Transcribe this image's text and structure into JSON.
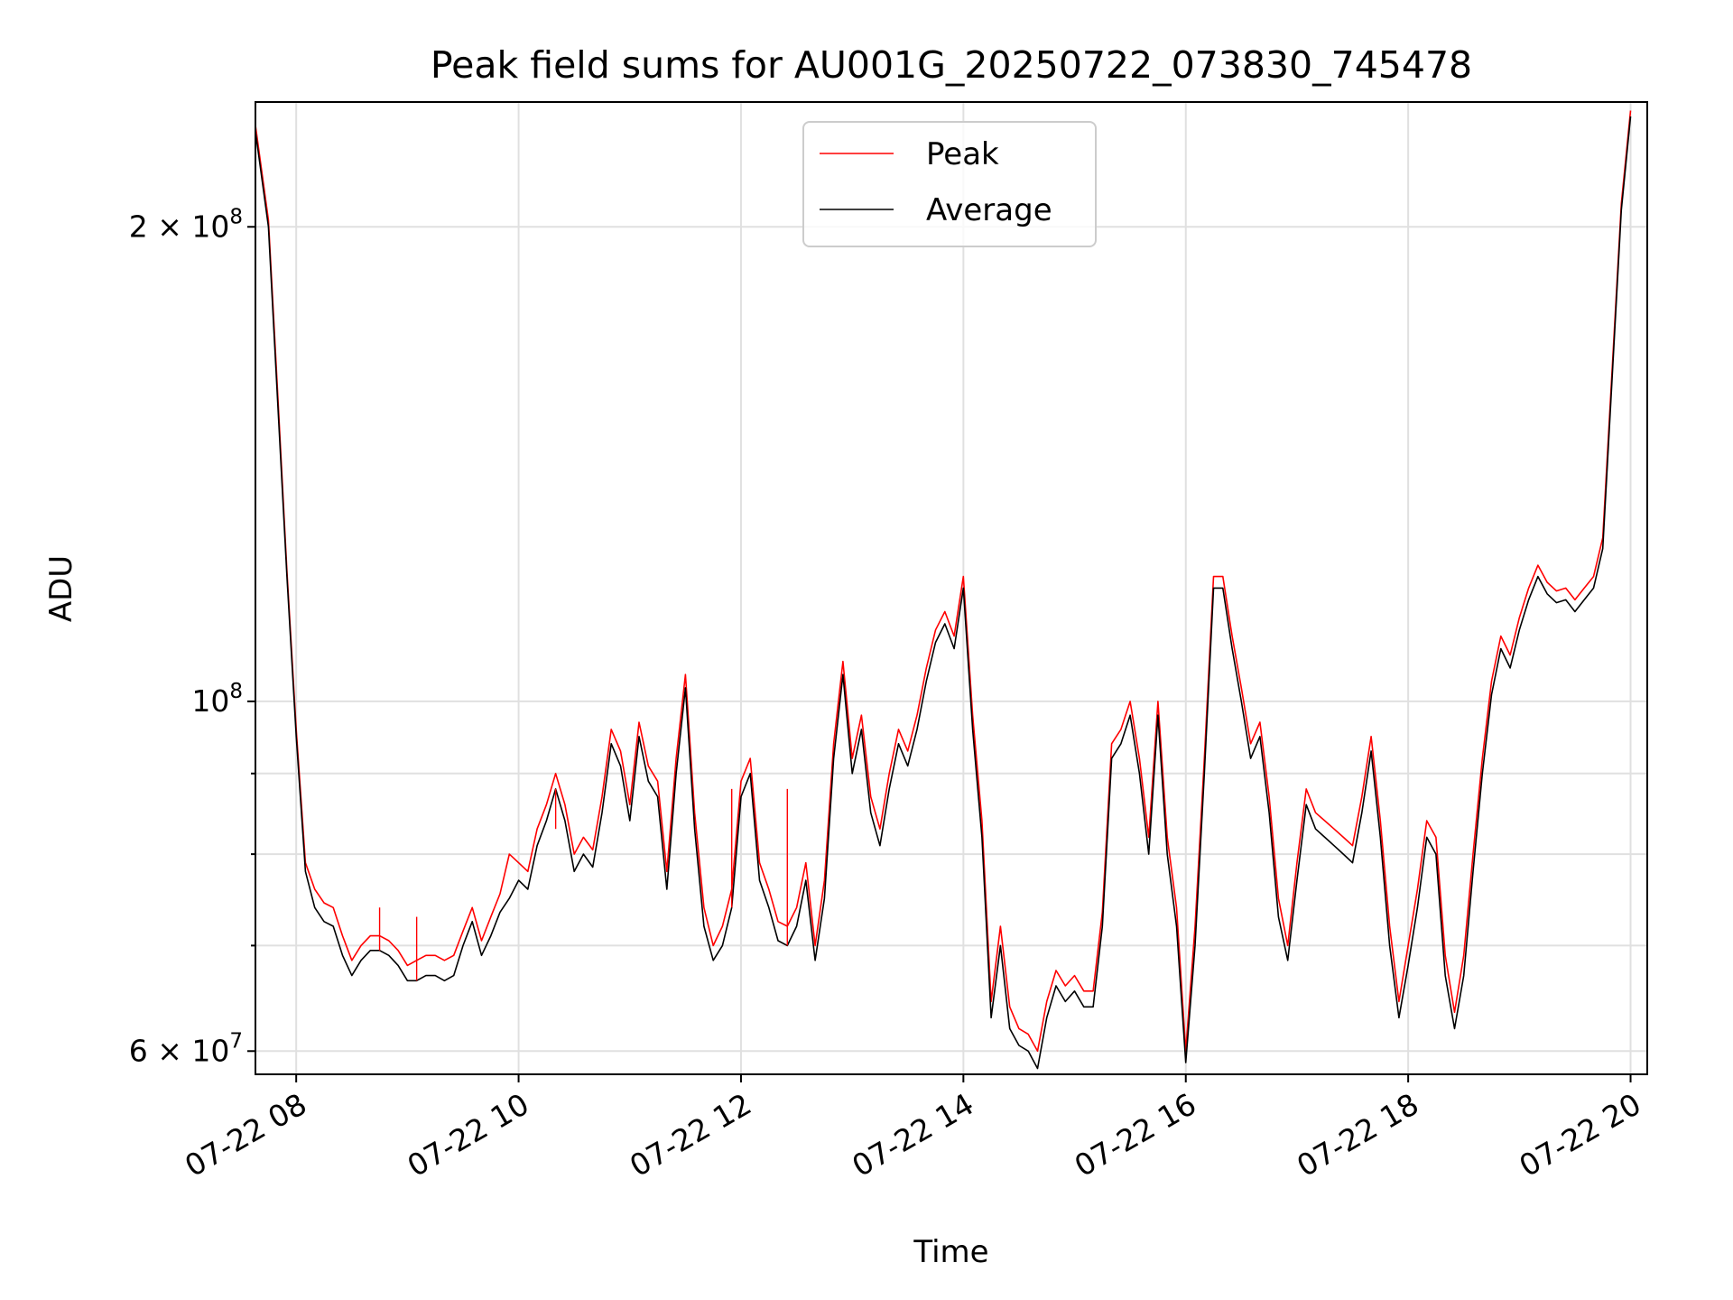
{
  "chart_data": {
    "type": "line",
    "title": "Peak field sums for AU001G_20250722_073830_745478",
    "xlabel": "Time",
    "ylabel": "ADU",
    "yscale": "log",
    "grid": true,
    "legend_position": "upper center",
    "x_range": [
      "2025-07-22 07:38",
      "2025-07-22 20:09"
    ],
    "ylim": [
      58000000,
      240000000
    ],
    "x_ticks": [
      "07-22 08",
      "07-22 10",
      "07-22 12",
      "07-22 14",
      "07-22 16",
      "07-22 18",
      "07-22 20"
    ],
    "y_ticks": [
      {
        "value": 60000000,
        "label": "6 × 10",
        "exp": "7"
      },
      {
        "value": 100000000,
        "label": "10",
        "exp": "8"
      },
      {
        "value": 200000000,
        "label": "2 × 10",
        "exp": "8"
      }
    ],
    "y_minor_ticks": [
      70000000,
      80000000,
      90000000
    ],
    "series": [
      {
        "name": "Peak",
        "color": "#ff0000"
      },
      {
        "name": "Average",
        "color": "#000000"
      }
    ],
    "x": [
      "07:38",
      "07:45",
      "07:50",
      "07:55",
      "08:00",
      "08:05",
      "08:10",
      "08:15",
      "08:20",
      "08:25",
      "08:30",
      "08:35",
      "08:40",
      "08:45",
      "08:50",
      "08:55",
      "09:00",
      "09:05",
      "09:10",
      "09:15",
      "09:20",
      "09:25",
      "09:30",
      "09:35",
      "09:40",
      "09:45",
      "09:50",
      "09:55",
      "10:00",
      "10:05",
      "10:10",
      "10:15",
      "10:20",
      "10:25",
      "10:30",
      "10:35",
      "10:40",
      "10:45",
      "10:50",
      "10:55",
      "11:00",
      "11:05",
      "11:10",
      "11:15",
      "11:20",
      "11:25",
      "11:30",
      "11:35",
      "11:40",
      "11:45",
      "11:50",
      "11:55",
      "12:00",
      "12:05",
      "12:10",
      "12:15",
      "12:20",
      "12:25",
      "12:30",
      "12:35",
      "12:40",
      "12:45",
      "12:50",
      "12:55",
      "13:00",
      "13:05",
      "13:10",
      "13:15",
      "13:20",
      "13:25",
      "13:30",
      "13:35",
      "13:40",
      "13:45",
      "13:50",
      "13:55",
      "14:00",
      "14:05",
      "14:10",
      "14:15",
      "14:20",
      "14:25",
      "14:30",
      "14:35",
      "14:40",
      "14:45",
      "14:50",
      "14:55",
      "15:00",
      "15:05",
      "15:10",
      "15:15",
      "15:20",
      "15:25",
      "15:30",
      "15:35",
      "15:40",
      "15:45",
      "15:50",
      "15:55",
      "16:00",
      "16:05",
      "16:10",
      "16:15",
      "16:20",
      "16:25",
      "16:30",
      "16:35",
      "16:40",
      "16:45",
      "16:50",
      "16:55",
      "17:00",
      "17:05",
      "17:10",
      "17:15",
      "17:20",
      "17:25",
      "17:30",
      "17:35",
      "17:40",
      "17:45",
      "17:50",
      "17:55",
      "18:00",
      "18:05",
      "18:10",
      "18:15",
      "18:20",
      "18:25",
      "18:30",
      "18:35",
      "18:40",
      "18:45",
      "18:50",
      "18:55",
      "19:00",
      "19:05",
      "19:10",
      "19:15",
      "19:20",
      "19:25",
      "19:30",
      "19:35",
      "19:40",
      "19:45",
      "19:50",
      "19:55",
      "20:00",
      "20:05",
      "20:09"
    ],
    "average": [
      230000000,
      200000000,
      155000000,
      120000000,
      95000000,
      78000000,
      74000000,
      72500000,
      72000000,
      69000000,
      67000000,
      68500000,
      69500000,
      69500000,
      69000000,
      68000000,
      66500000,
      66500000,
      67000000,
      67000000,
      66500000,
      67000000,
      70000000,
      72500000,
      69000000,
      71000000,
      73500000,
      75000000,
      77000000,
      76000000,
      81000000,
      84000000,
      88000000,
      84000000,
      78000000,
      80000000,
      78500000,
      85000000,
      94000000,
      91000000,
      84000000,
      95000000,
      89000000,
      87000000,
      76000000,
      90000000,
      102000000,
      83000000,
      72000000,
      68500000,
      70000000,
      74000000,
      87000000,
      90000000,
      77000000,
      74000000,
      70500000,
      70000000,
      72000000,
      77000000,
      68500000,
      75000000,
      92000000,
      104000000,
      90000000,
      96000000,
      85000000,
      81000000,
      88000000,
      94000000,
      91000000,
      96000000,
      103000000,
      109000000,
      112000000,
      108000000,
      118000000,
      96000000,
      82000000,
      63000000,
      70000000,
      62000000,
      60500000,
      60000000,
      58500000,
      63000000,
      66000000,
      64500000,
      65500000,
      64000000,
      64000000,
      72000000,
      92000000,
      94000000,
      98000000,
      90000000,
      80000000,
      98000000,
      80000000,
      72000000,
      59000000,
      70000000,
      90000000,
      118000000,
      118000000,
      108000000,
      100000000,
      92000000,
      95000000,
      85000000,
      73000000,
      68500000,
      77000000,
      86000000,
      83000000,
      82000000,
      81000000,
      80000000,
      79000000,
      85000000,
      93000000,
      82000000,
      70000000,
      63000000,
      68000000,
      74000000,
      82000000,
      80000000,
      67000000,
      62000000,
      67000000,
      78000000,
      90000000,
      101000000,
      108000000,
      105000000,
      111000000,
      116000000,
      120000000,
      117000000,
      115500000,
      116000000,
      114000000,
      116000000,
      118000000,
      125000000,
      160000000,
      205000000,
      235000000
    ],
    "peak": [
      232000000,
      202000000,
      157000000,
      121000000,
      96000000,
      79000000,
      76000000,
      74500000,
      74000000,
      71000000,
      68500000,
      70000000,
      71000000,
      71000000,
      70500000,
      69500000,
      68000000,
      68500000,
      69000000,
      69000000,
      68500000,
      69000000,
      71500000,
      74000000,
      70500000,
      73000000,
      75500000,
      80000000,
      79000000,
      78000000,
      83000000,
      86000000,
      90000000,
      86000000,
      80000000,
      82000000,
      80500000,
      87000000,
      96000000,
      93000000,
      86000000,
      97000000,
      91000000,
      89000000,
      78000000,
      92000000,
      104000000,
      85000000,
      74000000,
      70000000,
      72000000,
      76000000,
      89000000,
      92000000,
      79000000,
      76000000,
      72500000,
      72000000,
      74000000,
      79000000,
      70000000,
      77000000,
      94000000,
      106000000,
      92000000,
      98000000,
      87000000,
      83000000,
      90000000,
      96000000,
      93000000,
      98000000,
      105000000,
      111000000,
      114000000,
      110000000,
      120000000,
      98000000,
      84000000,
      64500000,
      72000000,
      64000000,
      62000000,
      61500000,
      60000000,
      64500000,
      67500000,
      66000000,
      67000000,
      65500000,
      65500000,
      73500000,
      94000000,
      96000000,
      100000000,
      92000000,
      82000000,
      100000000,
      82000000,
      74000000,
      60000000,
      72000000,
      92000000,
      120000000,
      120000000,
      110000000,
      102000000,
      94000000,
      97000000,
      87000000,
      75000000,
      70000000,
      79000000,
      88000000,
      85000000,
      84000000,
      83000000,
      82000000,
      81000000,
      87000000,
      95000000,
      84000000,
      72000000,
      64500000,
      70000000,
      76000000,
      84000000,
      82000000,
      69000000,
      63500000,
      69000000,
      80000000,
      92000000,
      103000000,
      110000000,
      107000000,
      113000000,
      118000000,
      122000000,
      119000000,
      117500000,
      118000000,
      116000000,
      118000000,
      120000000,
      127000000,
      162000000,
      207000000,
      237000000
    ],
    "peak_spikes": [
      {
        "x": "08:45",
        "y": 74000000
      },
      {
        "x": "09:05",
        "y": 73000000
      },
      {
        "x": "10:20",
        "y": 83000000
      },
      {
        "x": "11:55",
        "y": 88000000
      },
      {
        "x": "12:25",
        "y": 88000000
      }
    ]
  }
}
